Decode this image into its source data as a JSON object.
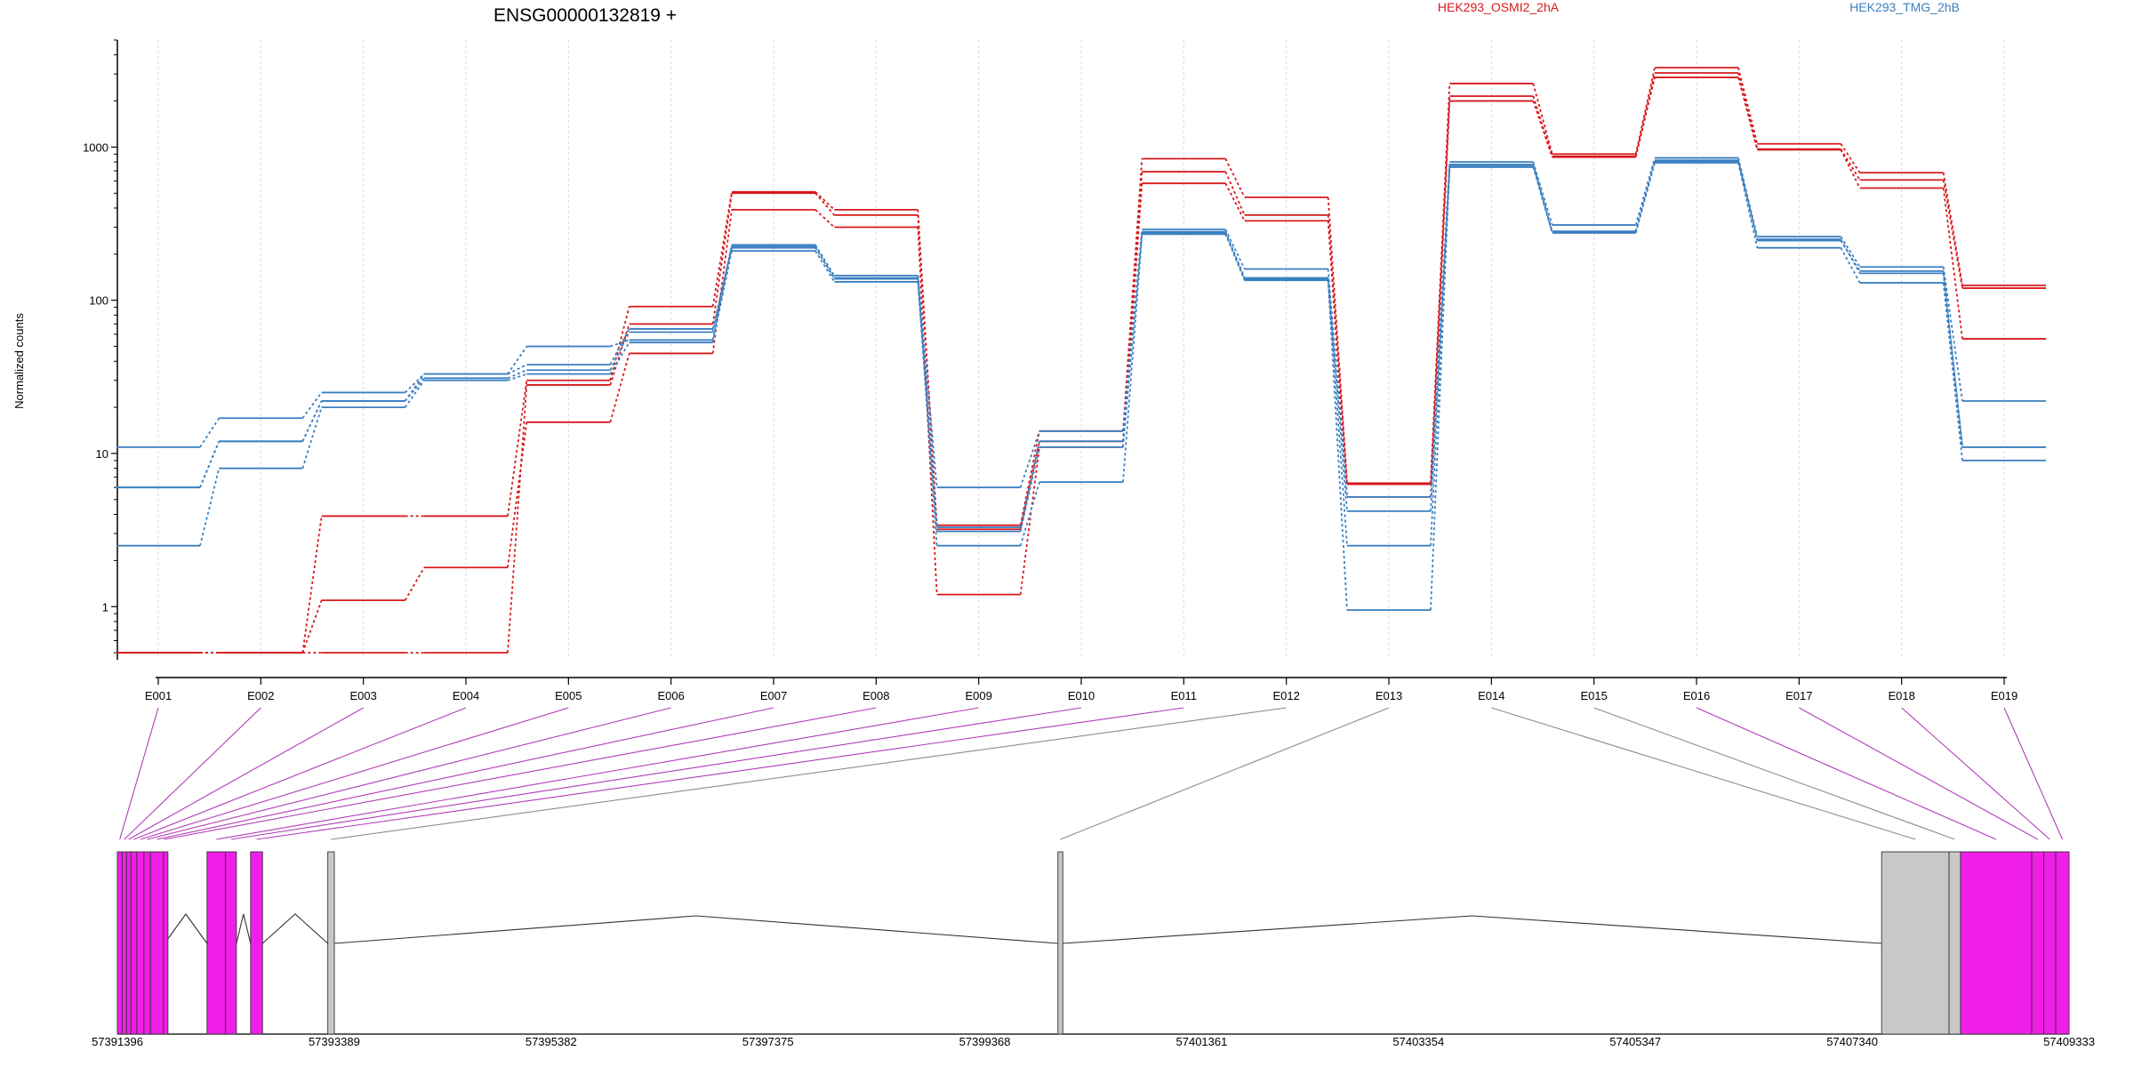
{
  "chart_data": {
    "type": "line",
    "title": "ENSG00000132819 +",
    "ylabel": "Normalized counts",
    "xlabel": "",
    "y_scale": "log",
    "ylim": [
      0.45,
      5000
    ],
    "y_ticks": [
      1,
      10,
      100,
      1000
    ],
    "y_tick_labels": [
      "1",
      "10",
      "100",
      "1000"
    ],
    "grid": "vertical dashed lines at exon centers",
    "legend_position": "top-right",
    "categories": [
      "E001",
      "E002",
      "E003",
      "E004",
      "E005",
      "E006",
      "E007",
      "E008",
      "E009",
      "E010",
      "E011",
      "E012",
      "E013",
      "E014",
      "E015",
      "E016",
      "E017",
      "E018",
      "E019"
    ],
    "series": [
      {
        "name": "HEK293_OSMI2_2hA",
        "color": "#d7191c",
        "values": [
          0.5,
          0.5,
          3.9,
          3.9,
          30,
          91,
          510,
          390,
          3.4,
          14,
          840,
          470,
          6.4,
          2600,
          900,
          3300,
          1050,
          680,
          125
        ]
      },
      {
        "color": "#d7191c",
        "values": [
          0.5,
          0.5,
          0.5,
          0.5,
          28,
          70,
          500,
          360,
          3.2,
          12,
          690,
          360,
          6.3,
          2150,
          870,
          3050,
          970,
          610,
          120
        ]
      },
      {
        "color": "#d7191c",
        "values": [
          0.5,
          0.5,
          1.1,
          1.8,
          16,
          45,
          390,
          300,
          1.2,
          11,
          580,
          330,
          5.2,
          2000,
          860,
          2850,
          960,
          540,
          56
        ]
      },
      {
        "name": "HEK293_TMG_2hB",
        "color": "#3a7fc0",
        "values": [
          11,
          17,
          25,
          33,
          50,
          55,
          230,
          145,
          6,
          14,
          290,
          160,
          5.2,
          800,
          310,
          850,
          260,
          165,
          22
        ]
      },
      {
        "color": "#3a7fc0",
        "values": [
          6,
          12,
          22,
          33,
          38,
          65,
          220,
          140,
          3.3,
          12,
          280,
          140,
          4.2,
          760,
          280,
          820,
          245,
          155,
          11
        ]
      },
      {
        "color": "#3a7fc0",
        "values": [
          2.5,
          8,
          20,
          30,
          33,
          53,
          210,
          132,
          2.5,
          6.5,
          270,
          135,
          2.5,
          740,
          275,
          790,
          220,
          130,
          9
        ]
      },
      {
        "color": "#3a7fc0",
        "values": [
          6,
          12,
          22,
          31,
          35,
          62,
          225,
          138,
          3.1,
          11,
          275,
          138,
          0.95,
          770,
          282,
          810,
          250,
          150,
          11
        ]
      }
    ],
    "gene_model": {
      "coordinate_ticks": [
        "57391396",
        "57393389",
        "57395382",
        "57397375",
        "57399368",
        "57401361",
        "57403354",
        "57405347",
        "57407340",
        "57409333"
      ],
      "coord_range": [
        57391396,
        57409333
      ],
      "exons": [
        {
          "id": "E001",
          "start": 57391396,
          "end": 57391440,
          "type": "differential"
        },
        {
          "id": "E002",
          "start": 57391440,
          "end": 57391480,
          "type": "differential"
        },
        {
          "id": "E003",
          "start": 57391480,
          "end": 57391520,
          "type": "differential"
        },
        {
          "id": "E004",
          "start": 57391520,
          "end": 57391575,
          "type": "differential"
        },
        {
          "id": "E005",
          "start": 57391575,
          "end": 57391640,
          "type": "differential"
        },
        {
          "id": "E006",
          "start": 57391640,
          "end": 57391700,
          "type": "differential"
        },
        {
          "id": "E007",
          "start": 57391700,
          "end": 57391820,
          "type": "differential"
        },
        {
          "id": "E008",
          "start": 57391820,
          "end": 57391830,
          "type": "differential"
        },
        {
          "id": "E009",
          "start": 57392220,
          "end": 57392390,
          "type": "differential"
        },
        {
          "id": "E010",
          "start": 57392390,
          "end": 57392490,
          "type": "differential"
        },
        {
          "id": "E011",
          "start": 57392620,
          "end": 57392730,
          "type": "differential"
        },
        {
          "id": "E012",
          "start": 57393330,
          "end": 57393390,
          "type": "other"
        },
        {
          "id": "E013",
          "start": 57400040,
          "end": 57400085,
          "type": "other"
        },
        {
          "id": "E014",
          "start": 57407610,
          "end": 57408230,
          "type": "other"
        },
        {
          "id": "E015",
          "start": 57408230,
          "end": 57408335,
          "type": "other"
        },
        {
          "id": "E016",
          "start": 57408335,
          "end": 57408990,
          "type": "differential"
        },
        {
          "id": "E017",
          "start": 57408990,
          "end": 57409100,
          "type": "differential"
        },
        {
          "id": "E018",
          "start": 57409100,
          "end": 57409210,
          "type": "differential"
        },
        {
          "id": "E019",
          "start": 57409210,
          "end": 57409333,
          "type": "differential"
        }
      ],
      "introns": [
        [
          57391830,
          57392220
        ],
        [
          57392490,
          57392620
        ],
        [
          57392730,
          57393330
        ],
        [
          57393390,
          57400040
        ],
        [
          57400085,
          57407610
        ]
      ]
    },
    "colors": {
      "differential_exon": "#f01fe8",
      "other_exon": "#c8c8c8",
      "differential_link": "#b23cb8",
      "other_link": "#8c8c8c"
    }
  }
}
